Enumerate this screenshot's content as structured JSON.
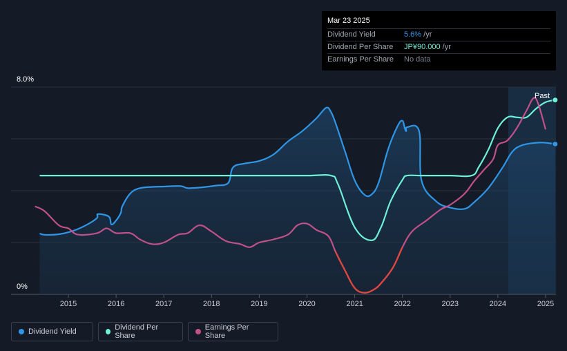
{
  "tooltip": {
    "date": "Mar 23 2025",
    "rows": [
      {
        "label": "Dividend Yield",
        "value": "5.6%",
        "unit": " /yr",
        "color": "#2f96e6"
      },
      {
        "label": "Dividend Per Share",
        "value": "JP¥90.000",
        "unit": " /yr",
        "color": "#6ff0d8"
      },
      {
        "label": "Earnings Per Share",
        "value": "No data",
        "unit": "",
        "color": "#7e8590"
      }
    ]
  },
  "legend": [
    {
      "label": "Dividend Yield",
      "color": "#2f96e6"
    },
    {
      "label": "Dividend Per Share",
      "color": "#6ff0d8"
    },
    {
      "label": "Earnings Per Share",
      "color": "#c2508a"
    }
  ],
  "chart_data": {
    "type": "line",
    "past_label": "Past",
    "y_tick_labels": [
      "8.0%",
      "0%"
    ],
    "x_tick_labels": [
      "2015",
      "2016",
      "2017",
      "2018",
      "2019",
      "2020",
      "2021",
      "2022",
      "2023",
      "2024",
      "2025"
    ],
    "xlim": [
      2014.0,
      2025.25
    ],
    "ylim_yield_pct": [
      0,
      8
    ],
    "grid": true,
    "legend_position": "bottom-left",
    "series": [
      {
        "name": "Dividend Yield",
        "unit": "%",
        "color": "#2f96e6",
        "area": true,
        "x": [
          2014.4,
          2014.5,
          2014.8,
          2015.1,
          2015.4,
          2015.6,
          2015.62,
          2015.85,
          2015.9,
          2016.0,
          2016.1,
          2016.13,
          2016.3,
          2016.5,
          2016.8,
          2017.0,
          2017.35,
          2017.5,
          2017.8,
          2018.1,
          2018.35,
          2018.45,
          2018.7,
          2019.0,
          2019.3,
          2019.6,
          2019.9,
          2020.2,
          2020.4,
          2020.5,
          2020.6,
          2020.8,
          2021.0,
          2021.2,
          2021.35,
          2021.5,
          2021.7,
          2021.9,
          2022.0,
          2022.05,
          2022.08,
          2022.1,
          2022.35,
          2022.4,
          2022.7,
          2023.0,
          2023.3,
          2023.5,
          2023.8,
          2024.1,
          2024.3,
          2024.5,
          2024.8,
          2025.0,
          2025.2
        ],
        "values": [
          2.35,
          2.3,
          2.32,
          2.45,
          2.7,
          2.95,
          3.1,
          3.0,
          2.7,
          2.85,
          3.15,
          3.4,
          3.9,
          4.1,
          4.15,
          4.16,
          4.18,
          4.1,
          4.13,
          4.2,
          4.3,
          4.9,
          5.05,
          5.15,
          5.4,
          5.9,
          6.3,
          6.8,
          7.2,
          7.05,
          6.6,
          5.5,
          4.4,
          3.85,
          3.85,
          4.3,
          5.6,
          6.5,
          6.7,
          6.4,
          6.3,
          6.45,
          6.3,
          4.4,
          3.6,
          3.35,
          3.3,
          3.55,
          4.1,
          4.9,
          5.5,
          5.75,
          5.85,
          5.85,
          5.8
        ]
      },
      {
        "name": "Dividend Per Share",
        "unit": "JP¥",
        "color": "#6ff0d8",
        "area": false,
        "x": [
          2014.4,
          2015.0,
          2016.0,
          2017.0,
          2018.0,
          2019.0,
          2020.0,
          2020.5,
          2020.65,
          2021.0,
          2021.35,
          2021.55,
          2021.75,
          2022.0,
          2022.1,
          2022.4,
          2023.0,
          2023.45,
          2023.6,
          2023.8,
          2024.0,
          2024.2,
          2024.4,
          2024.6,
          2024.8,
          2025.0,
          2025.2
        ],
        "values": [
          55,
          55,
          55,
          55,
          55,
          55,
          55,
          55,
          51,
          31,
          25,
          31,
          43,
          53,
          55,
          55,
          55,
          55,
          59,
          67,
          77,
          82,
          82,
          82,
          86,
          89,
          90
        ]
      },
      {
        "name": "Earnings Per Share",
        "unit": "JP¥",
        "color": "#c2508a",
        "area": false,
        "x": [
          2014.3,
          2014.5,
          2014.8,
          2015.0,
          2015.2,
          2015.6,
          2015.8,
          2016.0,
          2016.3,
          2016.5,
          2016.75,
          2017.0,
          2017.3,
          2017.5,
          2017.75,
          2018.0,
          2018.3,
          2018.6,
          2018.8,
          2019.0,
          2019.3,
          2019.6,
          2019.8,
          2020.0,
          2020.2,
          2020.45,
          2020.6,
          2020.8,
          2021.0,
          2021.2,
          2021.4,
          2021.55,
          2021.8,
          2022.0,
          2022.2,
          2022.5,
          2022.8,
          2023.0,
          2023.3,
          2023.5,
          2023.7,
          2023.9,
          2024.0,
          2024.2,
          2024.4,
          2024.6,
          2024.75,
          2024.85,
          2025.0
        ],
        "values": [
          44,
          41,
          32,
          30,
          26,
          27,
          30,
          27,
          27,
          23,
          20,
          21,
          26,
          27,
          32,
          28,
          22,
          20,
          18,
          21,
          23,
          26,
          32,
          33,
          29,
          25,
          15,
          3,
          -8,
          -11,
          -9,
          -5,
          5,
          18,
          28,
          35,
          42,
          45,
          52,
          60,
          67,
          74,
          83,
          86,
          94,
          105,
          113,
          109,
          93
        ]
      }
    ],
    "dps_scale": [
      0,
      96
    ],
    "eps_scale": [
      -12,
      120
    ]
  }
}
